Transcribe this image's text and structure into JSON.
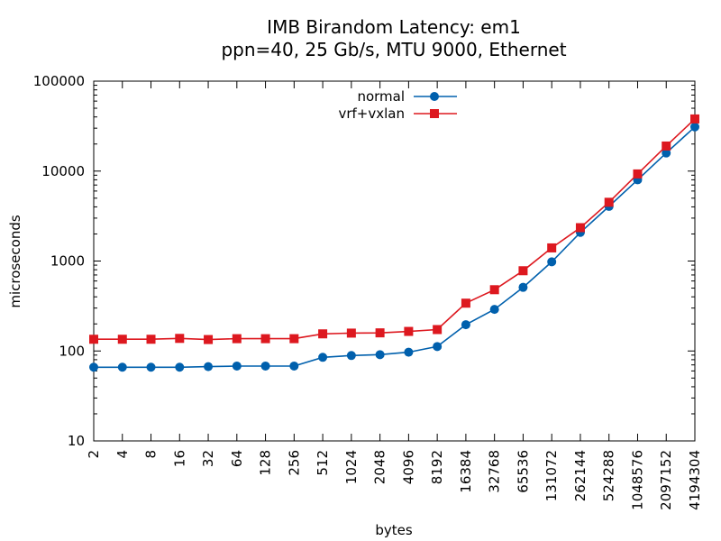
{
  "chart_data": {
    "type": "line",
    "title": "IMB Birandom Latency: em1",
    "subtitle": "ppn=40, 25 Gb/s, MTU 9000, Ethernet",
    "xlabel": "bytes",
    "ylabel": "microseconds",
    "xscale": "log",
    "yscale": "log",
    "ylim": [
      10,
      100000
    ],
    "xlim": [
      2,
      4194304
    ],
    "grid": false,
    "legend": "top-center",
    "x": [
      2,
      4,
      8,
      16,
      32,
      64,
      128,
      256,
      512,
      1024,
      2048,
      4096,
      8192,
      16384,
      32768,
      65536,
      131072,
      262144,
      524288,
      1048576,
      2097152,
      4194304
    ],
    "x_tick_labels": [
      "2",
      "4",
      "8",
      "16",
      "32",
      "64",
      "128",
      "256",
      "512",
      "1024",
      "2048",
      "4096",
      "8192",
      "16384",
      "32768",
      "65536",
      "131072",
      "262144",
      "524288",
      "1048576",
      "2097152",
      "4194304"
    ],
    "y_tick_labels": [
      "10",
      "100",
      "1000",
      "10000",
      "100000"
    ],
    "y_ticks": [
      10,
      100,
      1000,
      10000,
      100000
    ],
    "series": [
      {
        "name": "normal",
        "color": "#0060ad",
        "marker": "circle",
        "values": [
          66,
          66,
          66,
          66,
          67,
          68,
          68,
          68,
          85,
          89,
          91,
          97,
          112,
          196,
          290,
          510,
          980,
          2080,
          4050,
          8000,
          15900,
          31000
        ]
      },
      {
        "name": "vrf+vxlan",
        "color": "#dd181f",
        "marker": "square",
        "values": [
          135,
          135,
          135,
          138,
          134,
          137,
          137,
          137,
          155,
          158,
          159,
          165,
          173,
          340,
          480,
          780,
          1400,
          2350,
          4500,
          9300,
          19000,
          38000
        ]
      }
    ]
  }
}
